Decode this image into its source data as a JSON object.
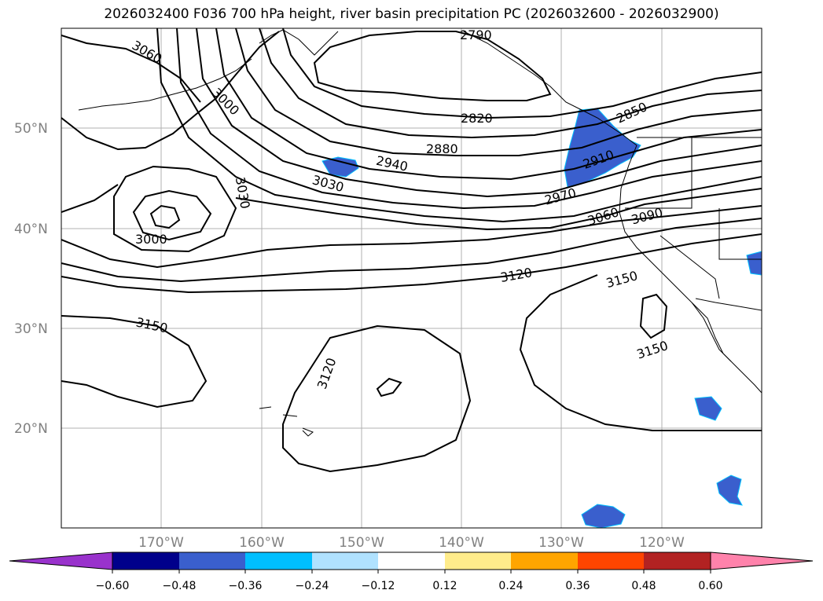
{
  "title": "2026032400 F036 700 hPa height, river basin precipitation PC (2026032600 - 2026032900)",
  "map": {
    "lat_labels": [
      "50°N",
      "40°N",
      "30°N",
      "20°N"
    ],
    "lon_labels": [
      "170°W",
      "160°W",
      "150°W",
      "140°W",
      "130°W",
      "120°W"
    ],
    "contour_labels": [
      "3060",
      "3000",
      "3030",
      "3000",
      "2790",
      "2820",
      "2850",
      "2880",
      "2910",
      "2940",
      "2970",
      "3030",
      "3060",
      "3090",
      "3120",
      "3150",
      "3150",
      "3120",
      "3150"
    ],
    "grid": true
  },
  "colorbar": {
    "ticks": [
      "−0.60",
      "−0.48",
      "−0.36",
      "−0.24",
      "−0.12",
      "0.12",
      "0.24",
      "0.36",
      "0.48",
      "0.60"
    ],
    "colors": [
      "#9932cc",
      "#00008b",
      "#3a5fcd",
      "#00bfff",
      "#b0e2ff",
      "#ffffff",
      "#ffec8b",
      "#ffa500",
      "#ff4500",
      "#b22222",
      "#ff82ab"
    ]
  }
}
